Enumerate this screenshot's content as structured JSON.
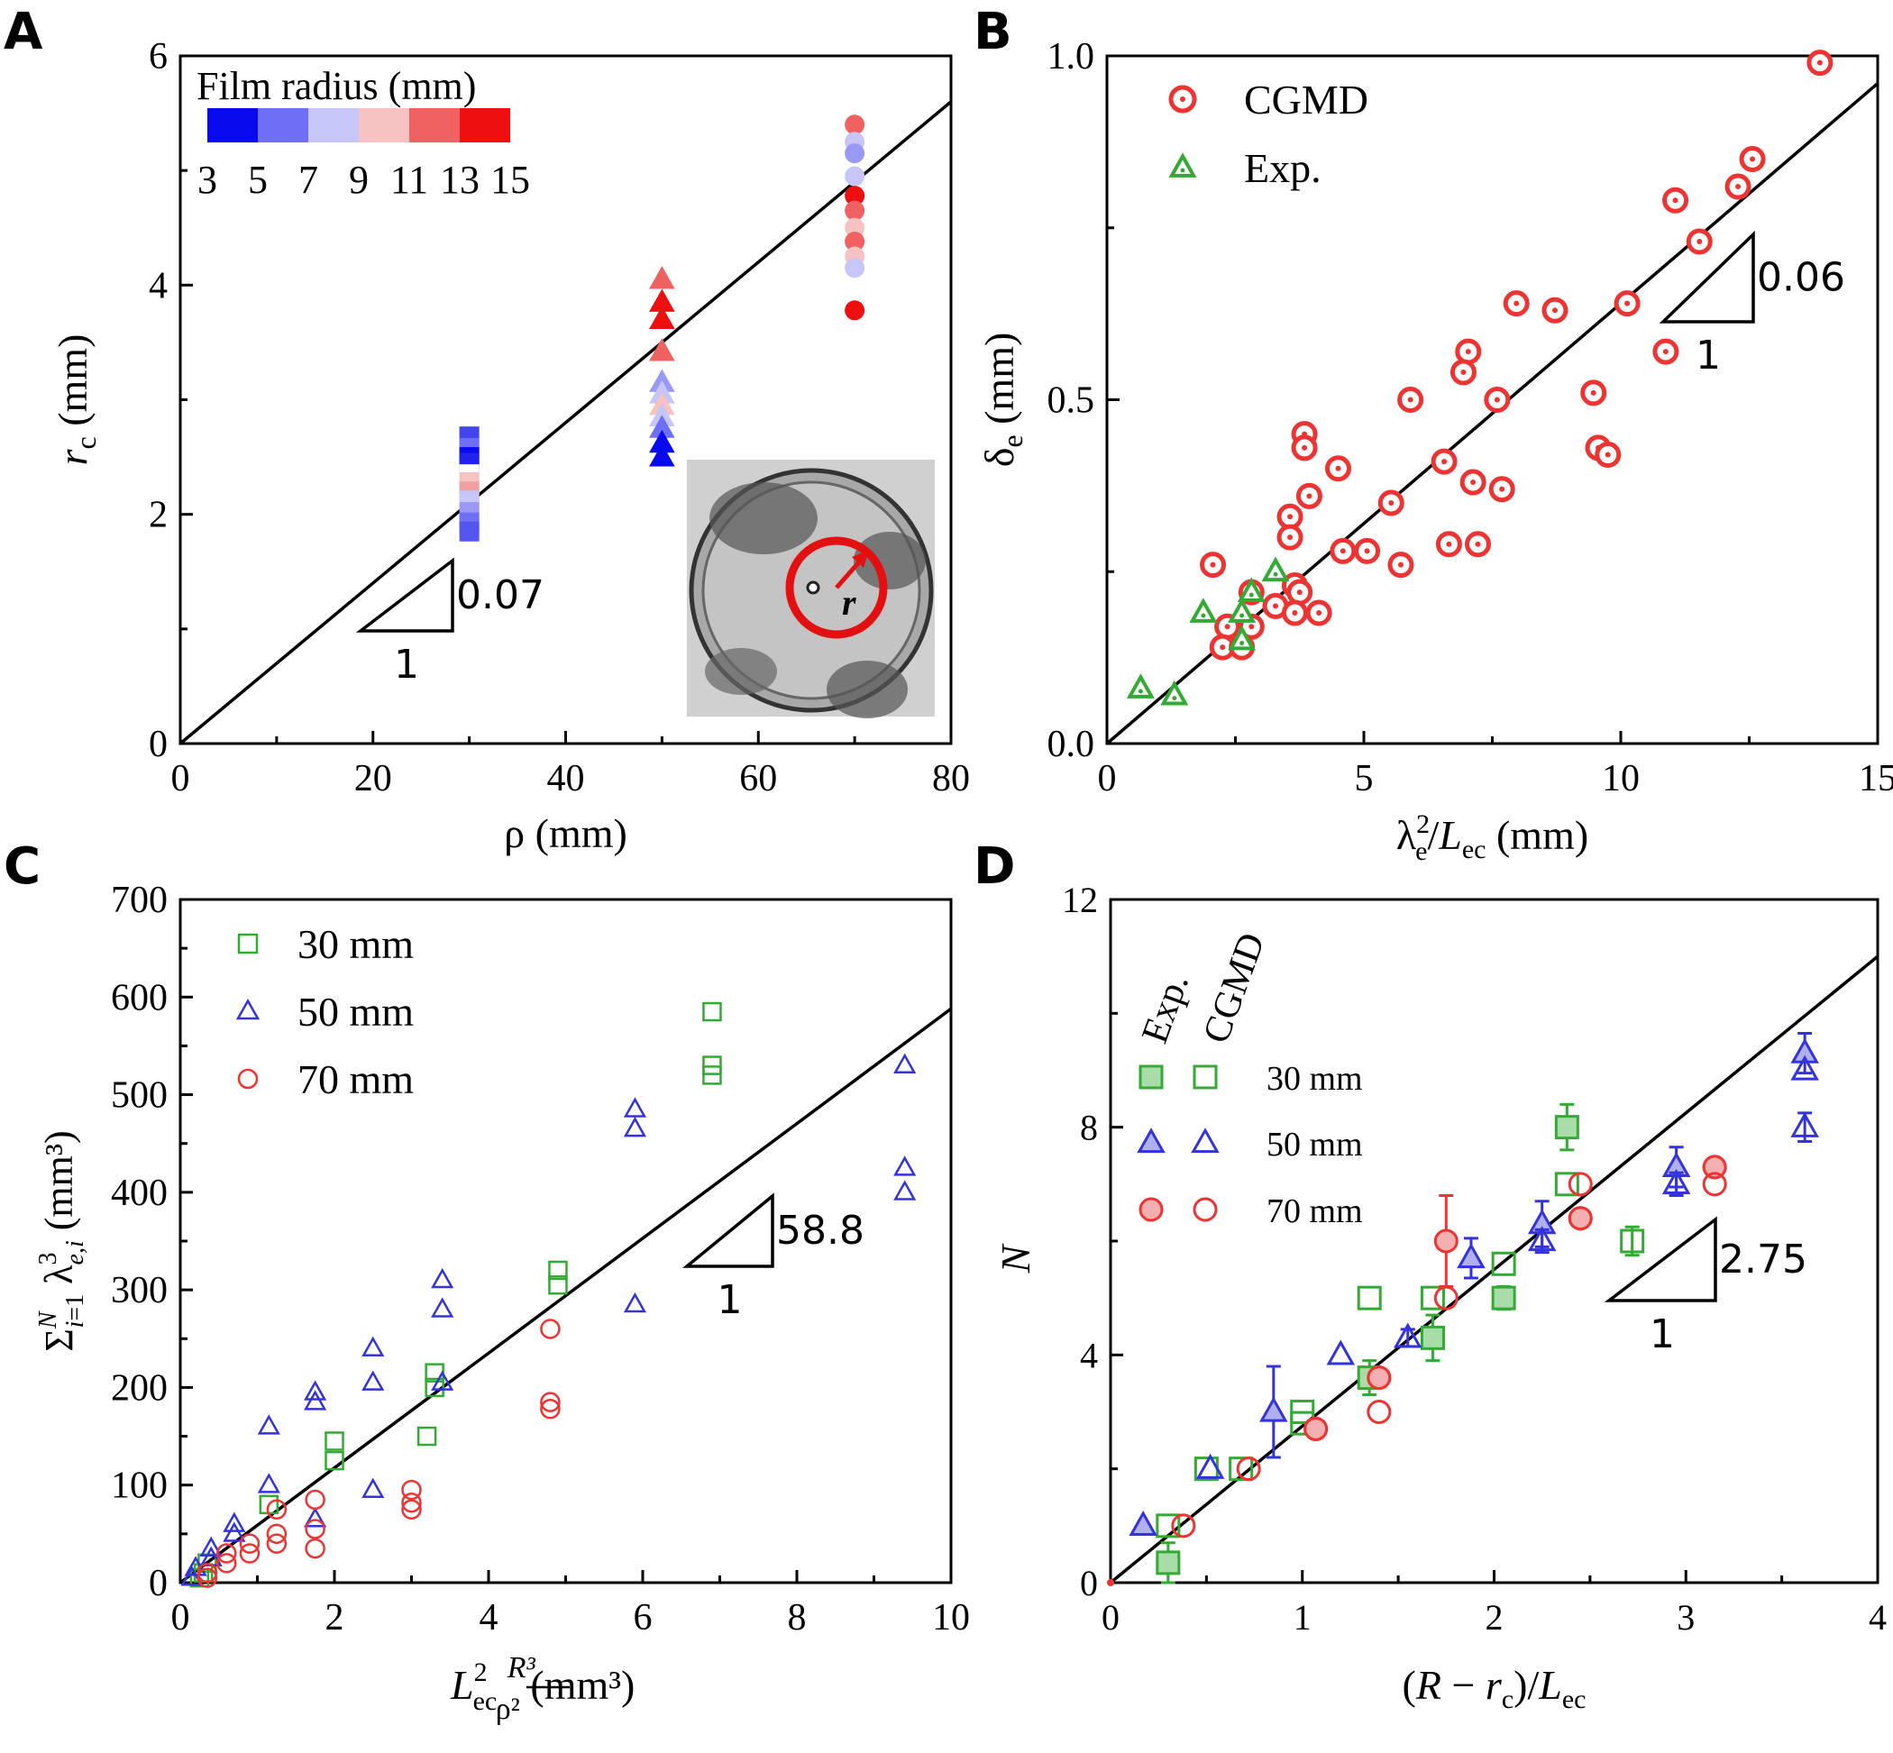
{
  "chart_data": [
    {
      "panel_label": "A",
      "type": "scatter",
      "xlabel": "ρ (mm)",
      "ylabel": "r_c (mm)",
      "xlim": [
        0,
        80
      ],
      "ylim": [
        0,
        6
      ],
      "xticks": [
        "0",
        "20",
        "40",
        "60",
        "80"
      ],
      "yticks": [
        "0",
        "2",
        "4",
        "6"
      ],
      "colorbar": {
        "title": "Film radius (mm)",
        "ticks": [
          "3",
          "5",
          "7",
          "9",
          "11",
          "13",
          "15"
        ],
        "colors": [
          "#0a0aee",
          "#6f6ff6",
          "#c6c6f8",
          "#f6c2c2",
          "#f06262",
          "#ee1010"
        ]
      },
      "fit_line": {
        "slope": 0.07,
        "intercept": 0
      },
      "slope_triangle": {
        "rise_label": "0.07",
        "run_label": "1"
      },
      "series": [
        {
          "marker": "square",
          "x": 30,
          "points": [
            [
              30,
              2.68,
              "#4444ee"
            ],
            [
              30,
              2.58,
              "#6f6ff6"
            ],
            [
              30,
              2.5,
              "#0a0aee"
            ],
            [
              30,
              2.45,
              "#2222ee"
            ],
            [
              30,
              2.35,
              "#ffffff"
            ],
            [
              30,
              2.28,
              "#f6c2c2"
            ],
            [
              30,
              2.2,
              "#f0a0a0"
            ],
            [
              30,
              2.12,
              "#c6c6f8"
            ],
            [
              30,
              2.02,
              "#9a9af6"
            ],
            [
              30,
              1.93,
              "#6f6ff6"
            ],
            [
              30,
              1.85,
              "#5555f0"
            ]
          ]
        },
        {
          "marker": "triangle",
          "x": 50,
          "points": [
            [
              50,
              4.05,
              "#f06262"
            ],
            [
              50,
              3.85,
              "#ee1010"
            ],
            [
              50,
              3.7,
              "#ee1010"
            ],
            [
              50,
              3.42,
              "#f06262"
            ],
            [
              50,
              3.15,
              "#9a9af6"
            ],
            [
              50,
              3.05,
              "#c6c6f8"
            ],
            [
              50,
              2.95,
              "#f6c2c2"
            ],
            [
              50,
              2.85,
              "#c6c6f8"
            ],
            [
              50,
              2.75,
              "#6f6ff6"
            ],
            [
              50,
              2.62,
              "#0a0aee"
            ],
            [
              50,
              2.5,
              "#0a0aee"
            ]
          ]
        },
        {
          "marker": "circle",
          "x": 70,
          "points": [
            [
              70,
              5.4,
              "#f06262"
            ],
            [
              70,
              5.25,
              "#c6c6f8"
            ],
            [
              70,
              5.15,
              "#9a9af6"
            ],
            [
              70,
              4.95,
              "#c6c6f8"
            ],
            [
              70,
              4.78,
              "#ee1010"
            ],
            [
              70,
              4.65,
              "#f06262"
            ],
            [
              70,
              4.5,
              "#f6c2c2"
            ],
            [
              70,
              4.38,
              "#f06262"
            ],
            [
              70,
              4.25,
              "#f6c2c2"
            ],
            [
              70,
              4.15,
              "#c6c6f8"
            ],
            [
              70,
              3.78,
              "#ee1010"
            ]
          ]
        }
      ],
      "inset": {
        "marker_label": "r"
      }
    },
    {
      "panel_label": "B",
      "type": "scatter",
      "xlabel": "λ²_e/L_ec (mm)",
      "ylabel": "δ_e (mm)",
      "xlim": [
        0,
        16
      ],
      "ylim": [
        0,
        1.0
      ],
      "xticks": [
        "0",
        "5",
        "10",
        "15"
      ],
      "yticks": [
        "0.0",
        "0.5",
        "1.0"
      ],
      "legend": {
        "position": "top-left",
        "entries": [
          "CGMD",
          "Exp."
        ]
      },
      "fit_line": {
        "slope": 0.06,
        "intercept": 0
      },
      "slope_triangle": {
        "rise_label": "0.06",
        "run_label": "1"
      },
      "series": [
        {
          "name": "CGMD",
          "marker": "dotted-circle",
          "color": "#ee3333",
          "points": [
            [
              14.8,
              0.99
            ],
            [
              13.4,
              0.85
            ],
            [
              13.1,
              0.81
            ],
            [
              11.8,
              0.79
            ],
            [
              12.3,
              0.73
            ],
            [
              10.8,
              0.64
            ],
            [
              11.6,
              0.57
            ],
            [
              8.5,
              0.64
            ],
            [
              9.3,
              0.63
            ],
            [
              7.5,
              0.57
            ],
            [
              7.4,
              0.54
            ],
            [
              6.3,
              0.5
            ],
            [
              8.1,
              0.5
            ],
            [
              10.1,
              0.51
            ],
            [
              4.1,
              0.45
            ],
            [
              4.1,
              0.43
            ],
            [
              7.0,
              0.41
            ],
            [
              4.8,
              0.4
            ],
            [
              7.6,
              0.38
            ],
            [
              8.2,
              0.37
            ],
            [
              4.2,
              0.36
            ],
            [
              5.9,
              0.35
            ],
            [
              3.8,
              0.33
            ],
            [
              3.8,
              0.3
            ],
            [
              7.1,
              0.29
            ],
            [
              7.7,
              0.29
            ],
            [
              4.9,
              0.28
            ],
            [
              5.4,
              0.28
            ],
            [
              2.2,
              0.26
            ],
            [
              6.1,
              0.26
            ],
            [
              10.2,
              0.43
            ],
            [
              10.4,
              0.42
            ],
            [
              3.9,
              0.23
            ],
            [
              4.0,
              0.22
            ],
            [
              3.0,
              0.22
            ],
            [
              3.5,
              0.2
            ],
            [
              3.9,
              0.19
            ],
            [
              4.4,
              0.19
            ],
            [
              2.5,
              0.17
            ],
            [
              3.0,
              0.17
            ],
            [
              2.4,
              0.14
            ],
            [
              2.8,
              0.14
            ]
          ]
        },
        {
          "name": "Exp.",
          "marker": "dotted-triangle",
          "color": "#33aa33",
          "points": [
            [
              0.7,
              0.08
            ],
            [
              1.4,
              0.07
            ],
            [
              2.0,
              0.19
            ],
            [
              2.8,
              0.19
            ],
            [
              2.8,
              0.15
            ],
            [
              3.5,
              0.25
            ],
            [
              3.0,
              0.22
            ]
          ]
        }
      ]
    },
    {
      "panel_label": "C",
      "type": "scatter",
      "xlabel": "L²_ec R³/ρ² (mm³)",
      "ylabel": "Σ_{i=1}^{N} λ³_{e,i} (mm³)",
      "xlim": [
        0,
        10
      ],
      "ylim": [
        0,
        700
      ],
      "xticks": [
        "0",
        "2",
        "4",
        "6",
        "8",
        "10"
      ],
      "yticks": [
        "0",
        "100",
        "200",
        "300",
        "400",
        "500",
        "600",
        "700"
      ],
      "legend": {
        "position": "top-left",
        "entries": [
          "30 mm",
          "50 mm",
          "70 mm"
        ]
      },
      "fit_line": {
        "slope": 58.8,
        "intercept": 0
      },
      "slope_triangle": {
        "rise_label": "58.8",
        "run_label": "1"
      },
      "series": [
        {
          "name": "30 mm",
          "marker": "square",
          "color": "#33aa33",
          "points": [
            [
              6.9,
              585
            ],
            [
              6.9,
              530
            ],
            [
              6.9,
              520
            ],
            [
              4.9,
              320
            ],
            [
              4.9,
              305
            ],
            [
              3.3,
              215
            ],
            [
              3.3,
              200
            ],
            [
              3.2,
              150
            ],
            [
              2.0,
              145
            ],
            [
              2.0,
              125
            ],
            [
              1.15,
              80
            ],
            [
              0.25,
              5
            ],
            [
              0.3,
              10
            ],
            [
              0.35,
              20
            ]
          ]
        },
        {
          "name": "50 mm",
          "marker": "triangle",
          "color": "#3333dd",
          "points": [
            [
              9.4,
              530
            ],
            [
              9.4,
              425
            ],
            [
              9.4,
              400
            ],
            [
              5.9,
              485
            ],
            [
              5.9,
              465
            ],
            [
              5.9,
              285
            ],
            [
              3.4,
              310
            ],
            [
              3.4,
              280
            ],
            [
              3.4,
              205
            ],
            [
              2.5,
              240
            ],
            [
              2.5,
              205
            ],
            [
              2.5,
              95
            ],
            [
              1.75,
              195
            ],
            [
              1.75,
              185
            ],
            [
              1.75,
              65
            ],
            [
              1.15,
              160
            ],
            [
              1.15,
              100
            ],
            [
              0.7,
              60
            ],
            [
              0.7,
              50
            ],
            [
              0.4,
              35
            ],
            [
              0.4,
              25
            ],
            [
              0.2,
              15
            ],
            [
              0.15,
              5
            ]
          ]
        },
        {
          "name": "70 mm",
          "marker": "circle",
          "color": "#ee3333",
          "points": [
            [
              4.8,
              260
            ],
            [
              4.8,
              185
            ],
            [
              4.8,
              178
            ],
            [
              3.0,
              95
            ],
            [
              3.0,
              82
            ],
            [
              3.0,
              75
            ],
            [
              1.75,
              85
            ],
            [
              1.75,
              55
            ],
            [
              1.75,
              35
            ],
            [
              1.25,
              75
            ],
            [
              1.25,
              50
            ],
            [
              1.25,
              40
            ],
            [
              0.9,
              40
            ],
            [
              0.9,
              30
            ],
            [
              0.6,
              30
            ],
            [
              0.6,
              20
            ],
            [
              0.35,
              10
            ],
            [
              0.35,
              5
            ]
          ]
        }
      ]
    },
    {
      "panel_label": "D",
      "type": "scatter",
      "xlabel": "(R − r_c)/L_ec",
      "ylabel": "N",
      "xlim": [
        0,
        4
      ],
      "ylim": [
        0,
        12
      ],
      "xticks": [
        "0",
        "1",
        "2",
        "3",
        "4"
      ],
      "yticks": [
        "0",
        "4",
        "8",
        "12"
      ],
      "legend": {
        "position": "top-left",
        "column_headers": [
          "Exp.",
          "CGMD"
        ],
        "entries": [
          "30 mm",
          "50 mm",
          "70 mm"
        ]
      },
      "fit_line": {
        "slope": 2.75,
        "intercept": 0
      },
      "slope_triangle": {
        "rise_label": "2.75",
        "run_label": "1"
      },
      "series": [
        {
          "name": "30 mm Exp.",
          "marker": "square-filled",
          "color": "#33aa33",
          "points": [
            [
              0.3,
              0.35,
              0.35
            ],
            [
              2.38,
              8.0,
              0.4
            ],
            [
              1.68,
              4.3,
              0.4
            ],
            [
              1.35,
              3.6,
              0.3
            ],
            [
              2.05,
              5.0,
              0.2
            ]
          ]
        },
        {
          "name": "30 mm CGMD",
          "marker": "square",
          "color": "#33aa33",
          "points": [
            [
              0.3,
              1.0,
              0
            ],
            [
              0.5,
              2.0,
              0
            ],
            [
              0.68,
              2.0,
              0
            ],
            [
              1.0,
              3.0,
              0
            ],
            [
              1.0,
              2.8,
              0
            ],
            [
              1.35,
              5.0,
              0
            ],
            [
              1.68,
              5.0,
              0
            ],
            [
              2.05,
              5.6,
              0
            ],
            [
              2.38,
              7.0,
              0
            ],
            [
              2.72,
              6.0,
              0.25
            ]
          ]
        },
        {
          "name": "50 mm Exp.",
          "marker": "triangle-filled",
          "color": "#3333dd",
          "points": [
            [
              0.17,
              1.0,
              0
            ],
            [
              0.85,
              3.0,
              0.8
            ],
            [
              1.88,
              5.7,
              0.35
            ],
            [
              2.25,
              6.3,
              0.4
            ],
            [
              2.95,
              7.3,
              0.35
            ],
            [
              3.62,
              9.3,
              0.35
            ]
          ]
        },
        {
          "name": "50 mm CGMD",
          "marker": "triangle",
          "color": "#3333dd",
          "points": [
            [
              0.52,
              2.0,
              0
            ],
            [
              1.2,
              4.0,
              0
            ],
            [
              1.55,
              4.3,
              0.15
            ],
            [
              2.25,
              6.0,
              0.2
            ],
            [
              2.95,
              7.0,
              0.2
            ],
            [
              3.62,
              8.0,
              0.25
            ],
            [
              3.62,
              9.0,
              0
            ]
          ]
        },
        {
          "name": "70 mm Exp.",
          "marker": "circle-filled",
          "color": "#ee3333",
          "points": [
            [
              1.75,
              6.0,
              0.8
            ],
            [
              1.4,
              3.6,
              0.15
            ],
            [
              1.07,
              2.7,
              0.1
            ],
            [
              2.45,
              6.4,
              0.1
            ],
            [
              3.15,
              7.3,
              0.1
            ]
          ]
        },
        {
          "name": "70 mm CGMD",
          "marker": "circle",
          "color": "#ee3333",
          "points": [
            [
              0.38,
              1.0,
              0
            ],
            [
              0.72,
              2.0,
              0
            ],
            [
              1.07,
              2.7,
              0
            ],
            [
              1.4,
              3.0,
              0
            ],
            [
              1.4,
              3.6,
              0
            ],
            [
              1.75,
              5.0,
              0
            ],
            [
              2.45,
              7.0,
              0
            ],
            [
              2.45,
              6.4,
              0
            ],
            [
              3.15,
              7.0,
              0
            ],
            [
              3.15,
              7.3,
              0
            ]
          ]
        }
      ]
    }
  ]
}
